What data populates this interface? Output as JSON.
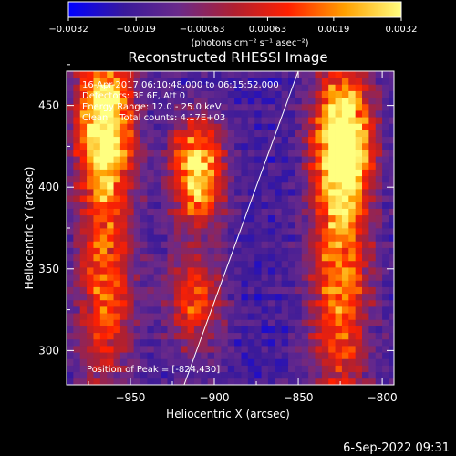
{
  "chart_data": {
    "type": "heatmap",
    "title": "Reconstructed RHESSI Image",
    "xlabel": "Heliocentric X (arcsec)",
    "ylabel": "Heliocentric Y (arcsec)",
    "xlim": [
      -988,
      -793
    ],
    "ylim": [
      279,
      471
    ],
    "x_ticks": [
      -950,
      -900,
      -850,
      -800
    ],
    "x_tick_labels": [
      "−950",
      "−900",
      "−850",
      "−800"
    ],
    "y_ticks": [
      300,
      350,
      400,
      450
    ],
    "y_tick_labels": [
      "300",
      "350",
      "400",
      "450"
    ],
    "colorbar": {
      "min": -0.0032,
      "max": 0.0032,
      "ticks": [
        -0.0032,
        -0.0019,
        -0.00063,
        0.00063,
        0.0019,
        0.0032
      ],
      "tick_labels": [
        "−0.0032",
        "−0.0019",
        "−0.00063",
        "0.00063",
        "0.0019",
        "0.0032"
      ],
      "units_label": "(photons cm⁻² s⁻¹ asec⁻²)",
      "colormap": [
        "#0000ff",
        "#3a1a9a",
        "#6a2a8a",
        "#b02030",
        "#ff2000",
        "#ffa000",
        "#ffff80"
      ]
    },
    "annotations": [
      "16-Apr-2017 06:10:48.000 to 06:15:52.000",
      "Detectors: 3F 6F, Att 0",
      "Energy Range: 12.0 - 25.0 keV",
      "Clean    Total counts: 4.17E+03"
    ],
    "peak_label": "Position of Peak = [-824,430]",
    "limb_line": {
      "x": [
        -918,
        -850
      ],
      "y": [
        279,
        471
      ]
    },
    "sources": [
      {
        "x": -965,
        "y": 440,
        "sx": 12,
        "sy": 32,
        "level": 0.95
      },
      {
        "x": -965,
        "y": 340,
        "sx": 12,
        "sy": 50,
        "level": 0.55
      },
      {
        "x": -910,
        "y": 410,
        "sx": 11,
        "sy": 22,
        "level": 0.9
      },
      {
        "x": -912,
        "y": 330,
        "sx": 12,
        "sy": 22,
        "level": 0.5
      },
      {
        "x": -823,
        "y": 430,
        "sx": 12,
        "sy": 30,
        "level": 1.0
      },
      {
        "x": -825,
        "y": 340,
        "sx": 13,
        "sy": 55,
        "level": 0.6
      }
    ]
  },
  "footer": {
    "timestamp": "6-Sep-2022 09:31"
  }
}
